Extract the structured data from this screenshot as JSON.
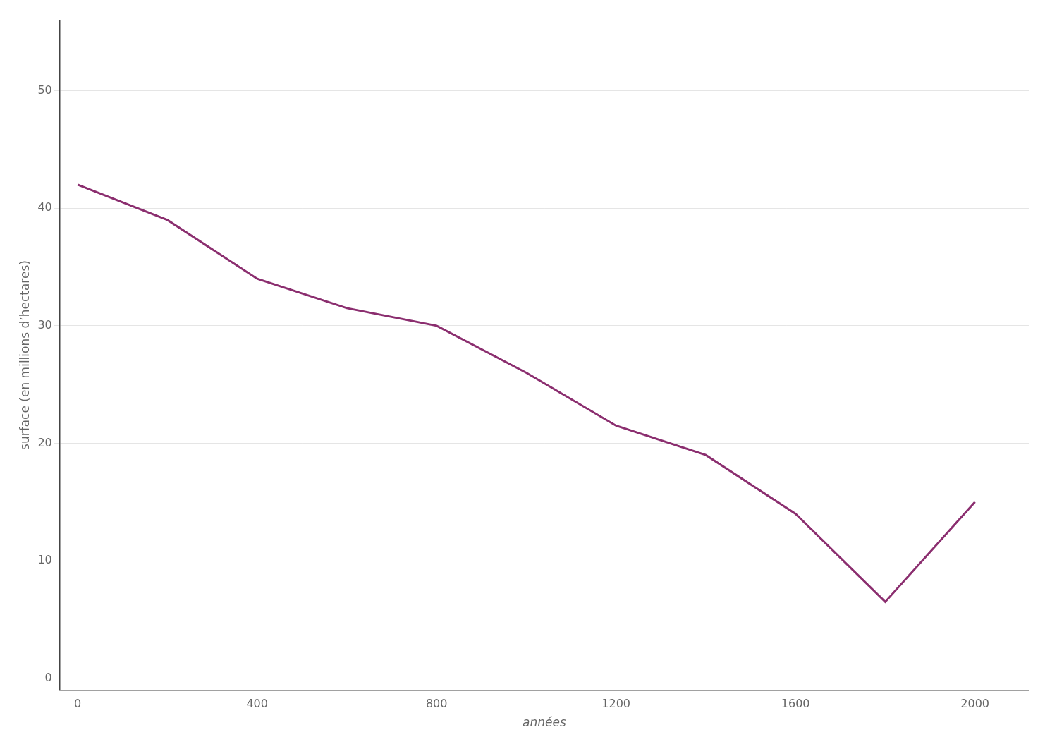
{
  "chart_data": {
    "type": "line",
    "xlabel": "années",
    "ylabel": "surface (en millions d’hectares)",
    "x": [
      0,
      200,
      400,
      600,
      800,
      1000,
      1200,
      1400,
      1600,
      1800,
      2000
    ],
    "values": [
      42,
      39,
      34,
      31.5,
      30,
      26,
      21.5,
      19,
      14,
      6.5,
      15
    ],
    "color": "#8B2E6F",
    "xlim": [
      -40,
      2120
    ],
    "ylim": [
      -1,
      56
    ],
    "xticks": [
      0,
      400,
      800,
      1200,
      1600,
      2000
    ],
    "yticks": [
      0,
      10,
      20,
      30,
      40,
      50
    ],
    "grid": "y"
  }
}
